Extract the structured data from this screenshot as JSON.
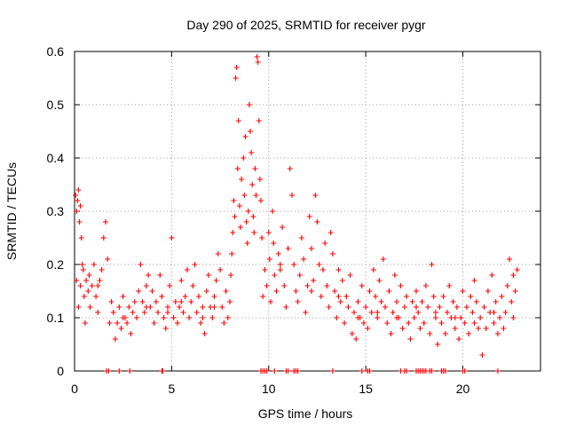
{
  "chart_data": {
    "type": "scatter",
    "title": "Day 290 of 2025, SRMTID for receiver pygr",
    "xlabel": "GPS time / hours",
    "ylabel": "SRMTID / TECUs",
    "xlim": [
      0,
      24
    ],
    "ylim": [
      0,
      0.6
    ],
    "xticks": [
      0,
      5,
      10,
      15,
      20
    ],
    "xtick_labels": [
      "0",
      "5",
      "10",
      "15",
      "20"
    ],
    "yticks": [
      0,
      0.1,
      0.2,
      0.3,
      0.4,
      0.5,
      0.6
    ],
    "ytick_labels": [
      "0",
      "0.1",
      "0.2",
      "0.3",
      "0.4",
      "0.5",
      "0.6"
    ],
    "grid": true,
    "marker": "+",
    "color": "#ff0000",
    "series": [
      {
        "name": "SRMTID",
        "points": [
          [
            0.05,
            0.33
          ],
          [
            0.1,
            0.3
          ],
          [
            0.15,
            0.32
          ],
          [
            0.2,
            0.34
          ],
          [
            0.25,
            0.28
          ],
          [
            0.3,
            0.31
          ],
          [
            0.35,
            0.25
          ],
          [
            0.4,
            0.2
          ],
          [
            0.1,
            0.17
          ],
          [
            0.2,
            0.12
          ],
          [
            0.3,
            0.16
          ],
          [
            0.45,
            0.19
          ],
          [
            0.5,
            0.14
          ],
          [
            0.55,
            0.09
          ],
          [
            0.6,
            0.17
          ],
          [
            0.7,
            0.15
          ],
          [
            0.75,
            0.18
          ],
          [
            0.8,
            0.12
          ],
          [
            0.9,
            0.16
          ],
          [
            1.0,
            0.2
          ],
          [
            1.1,
            0.14
          ],
          [
            1.2,
            0.11
          ],
          [
            1.3,
            0.17
          ],
          [
            1.4,
            0.19
          ],
          [
            1.5,
            0.25
          ],
          [
            1.6,
            0.28
          ],
          [
            1.7,
            0.21
          ],
          [
            1.8,
            0.09
          ],
          [
            1.9,
            0.13
          ],
          [
            2.0,
            0.11
          ],
          [
            2.1,
            0.06
          ],
          [
            2.2,
            0.09
          ],
          [
            2.3,
            0.12
          ],
          [
            2.4,
            0.08
          ],
          [
            2.5,
            0.14
          ],
          [
            2.6,
            0.1
          ],
          [
            2.7,
            0.09
          ],
          [
            2.8,
            0.12
          ],
          [
            2.9,
            0.07
          ],
          [
            3.0,
            0.11
          ],
          [
            3.1,
            0.13
          ],
          [
            3.2,
            0.1
          ],
          [
            3.3,
            0.15
          ],
          [
            3.4,
            0.2
          ],
          [
            3.5,
            0.13
          ],
          [
            3.6,
            0.11
          ],
          [
            3.7,
            0.16
          ],
          [
            3.8,
            0.18
          ],
          [
            3.9,
            0.12
          ],
          [
            4.0,
            0.15
          ],
          [
            4.1,
            0.09
          ],
          [
            4.2,
            0.13
          ],
          [
            4.3,
            0.11
          ],
          [
            4.4,
            0.18
          ],
          [
            4.5,
            0.14
          ],
          [
            4.6,
            0.1
          ],
          [
            4.7,
            0.08
          ],
          [
            4.8,
            0.12
          ],
          [
            4.9,
            0.16
          ],
          [
            5.0,
            0.25
          ],
          [
            5.1,
            0.1
          ],
          [
            5.2,
            0.13
          ],
          [
            5.3,
            0.09
          ],
          [
            5.4,
            0.12
          ],
          [
            5.5,
            0.17
          ],
          [
            5.6,
            0.11
          ],
          [
            5.7,
            0.14
          ],
          [
            5.8,
            0.19
          ],
          [
            5.9,
            0.1
          ],
          [
            6.0,
            0.13
          ],
          [
            6.1,
            0.16
          ],
          [
            6.2,
            0.2
          ],
          [
            6.3,
            0.11
          ],
          [
            6.4,
            0.14
          ],
          [
            6.5,
            0.09
          ],
          [
            6.6,
            0.12
          ],
          [
            6.7,
            0.07
          ],
          [
            6.8,
            0.15
          ],
          [
            6.9,
            0.18
          ],
          [
            7.0,
            0.12
          ],
          [
            7.1,
            0.1
          ],
          [
            7.2,
            0.14
          ],
          [
            7.3,
            0.17
          ],
          [
            7.4,
            0.22
          ],
          [
            7.5,
            0.19
          ],
          [
            7.6,
            0.12
          ],
          [
            7.7,
            0.09
          ],
          [
            7.8,
            0.15
          ],
          [
            7.9,
            0.1
          ],
          [
            8.0,
            0.13
          ],
          [
            8.05,
            0.18
          ],
          [
            8.1,
            0.22
          ],
          [
            8.15,
            0.26
          ],
          [
            8.2,
            0.32
          ],
          [
            8.25,
            0.29
          ],
          [
            8.3,
            0.55
          ],
          [
            8.35,
            0.57
          ],
          [
            8.4,
            0.38
          ],
          [
            8.45,
            0.47
          ],
          [
            8.5,
            0.31
          ],
          [
            8.55,
            0.27
          ],
          [
            8.6,
            0.36
          ],
          [
            8.7,
            0.4
          ],
          [
            8.75,
            0.33
          ],
          [
            8.8,
            0.44
          ],
          [
            8.85,
            0.28
          ],
          [
            8.9,
            0.24
          ],
          [
            8.95,
            0.3
          ],
          [
            9.0,
            0.5
          ],
          [
            9.05,
            0.45
          ],
          [
            9.1,
            0.41
          ],
          [
            9.15,
            0.35
          ],
          [
            9.2,
            0.29
          ],
          [
            9.25,
            0.26
          ],
          [
            9.3,
            0.38
          ],
          [
            9.35,
            0.33
          ],
          [
            9.4,
            0.59
          ],
          [
            9.45,
            0.58
          ],
          [
            9.5,
            0.47
          ],
          [
            9.55,
            0.36
          ],
          [
            9.6,
            0.32
          ],
          [
            9.65,
            0.25
          ],
          [
            9.7,
            0.14
          ],
          [
            9.8,
            0.19
          ],
          [
            9.9,
            0.16
          ],
          [
            10.0,
            0.26
          ],
          [
            10.05,
            0.21
          ],
          [
            10.1,
            0.13
          ],
          [
            10.2,
            0.3
          ],
          [
            10.25,
            0.24
          ],
          [
            10.3,
            0.18
          ],
          [
            10.4,
            0.15
          ],
          [
            10.5,
            0.22
          ],
          [
            10.6,
            0.19
          ],
          [
            10.7,
            0.27
          ],
          [
            10.8,
            0.16
          ],
          [
            10.9,
            0.12
          ],
          [
            11.0,
            0.23
          ],
          [
            11.1,
            0.38
          ],
          [
            11.2,
            0.33
          ],
          [
            11.3,
            0.2
          ],
          [
            11.4,
            0.15
          ],
          [
            11.5,
            0.13
          ],
          [
            11.6,
            0.18
          ],
          [
            11.7,
            0.25
          ],
          [
            11.8,
            0.21
          ],
          [
            11.9,
            0.11
          ],
          [
            12.0,
            0.16
          ],
          [
            12.1,
            0.29
          ],
          [
            12.2,
            0.23
          ],
          [
            12.3,
            0.17
          ],
          [
            12.4,
            0.33
          ],
          [
            12.5,
            0.28
          ],
          [
            12.6,
            0.2
          ],
          [
            12.7,
            0.14
          ],
          [
            12.8,
            0.19
          ],
          [
            12.9,
            0.24
          ],
          [
            13.0,
            0.16
          ],
          [
            13.1,
            0.12
          ],
          [
            13.2,
            0.26
          ],
          [
            13.3,
            0.22
          ],
          [
            13.4,
            0.15
          ],
          [
            13.5,
            0.1
          ],
          [
            13.6,
            0.19
          ],
          [
            13.7,
            0.13
          ],
          [
            13.8,
            0.17
          ],
          [
            13.9,
            0.09
          ],
          [
            14.0,
            0.14
          ],
          [
            14.1,
            0.12
          ],
          [
            14.2,
            0.18
          ],
          [
            14.3,
            0.07
          ],
          [
            14.4,
            0.11
          ],
          [
            14.5,
            0.06
          ],
          [
            14.6,
            0.13
          ],
          [
            14.7,
            0.1
          ],
          [
            14.8,
            0.16
          ],
          [
            14.9,
            0.09
          ],
          [
            15.0,
            0.12
          ],
          [
            15.1,
            0.08
          ],
          [
            15.2,
            0.15
          ],
          [
            15.3,
            0.11
          ],
          [
            15.4,
            0.19
          ],
          [
            15.5,
            0.14
          ],
          [
            15.6,
            0.1
          ],
          [
            15.7,
            0.17
          ],
          [
            15.8,
            0.13
          ],
          [
            15.9,
            0.21
          ],
          [
            16.0,
            0.12
          ],
          [
            16.1,
            0.09
          ],
          [
            16.2,
            0.15
          ],
          [
            16.3,
            0.07
          ],
          [
            16.4,
            0.11
          ],
          [
            16.5,
            0.18
          ],
          [
            16.6,
            0.13
          ],
          [
            16.7,
            0.1
          ],
          [
            16.8,
            0.16
          ],
          [
            16.9,
            0.08
          ],
          [
            17.0,
            0.12
          ],
          [
            17.1,
            0.14
          ],
          [
            17.2,
            0.09
          ],
          [
            17.3,
            0.06
          ],
          [
            17.4,
            0.13
          ],
          [
            17.5,
            0.1
          ],
          [
            17.6,
            0.15
          ],
          [
            17.7,
            0.11
          ],
          [
            17.8,
            0.08
          ],
          [
            17.9,
            0.13
          ],
          [
            18.0,
            0.09
          ],
          [
            18.1,
            0.16
          ],
          [
            18.2,
            0.12
          ],
          [
            18.3,
            0.07
          ],
          [
            18.4,
            0.2
          ],
          [
            18.5,
            0.14
          ],
          [
            18.6,
            0.1
          ],
          [
            18.7,
            0.05
          ],
          [
            18.8,
            0.12
          ],
          [
            18.9,
            0.09
          ],
          [
            19.0,
            0.14
          ],
          [
            19.1,
            0.07
          ],
          [
            19.2,
            0.11
          ],
          [
            19.3,
            0.16
          ],
          [
            19.4,
            0.1
          ],
          [
            19.5,
            0.13
          ],
          [
            19.6,
            0.08
          ],
          [
            19.7,
            0.12
          ],
          [
            19.8,
            0.06
          ],
          [
            19.9,
            0.1
          ],
          [
            20.0,
            0.15
          ],
          [
            20.1,
            0.09
          ],
          [
            20.2,
            0.12
          ],
          [
            20.3,
            0.07
          ],
          [
            20.4,
            0.14
          ],
          [
            20.5,
            0.11
          ],
          [
            20.6,
            0.17
          ],
          [
            20.7,
            0.13
          ],
          [
            20.8,
            0.08
          ],
          [
            20.9,
            0.1
          ],
          [
            21.0,
            0.03
          ],
          [
            21.1,
            0.12
          ],
          [
            21.2,
            0.08
          ],
          [
            21.3,
            0.15
          ],
          [
            21.4,
            0.11
          ],
          [
            21.5,
            0.18
          ],
          [
            21.6,
            0.09
          ],
          [
            21.7,
            0.13
          ],
          [
            21.8,
            0.07
          ],
          [
            21.9,
            0.1
          ],
          [
            22.0,
            0.14
          ],
          [
            22.1,
            0.08
          ],
          [
            22.2,
            0.11
          ],
          [
            22.3,
            0.16
          ],
          [
            22.4,
            0.21
          ],
          [
            22.5,
            0.13
          ],
          [
            22.6,
            0.18
          ],
          [
            22.7,
            0.15
          ],
          [
            22.8,
            0.19
          ],
          [
            1.2,
            0.16
          ],
          [
            2.5,
            0.1
          ],
          [
            3.7,
            0.12
          ],
          [
            4.8,
            0.11
          ],
          [
            5.5,
            0.13
          ],
          [
            6.6,
            0.1
          ],
          [
            7.2,
            0.12
          ],
          [
            10.6,
            0.2
          ],
          [
            12.2,
            0.15
          ],
          [
            13.6,
            0.14
          ],
          [
            14.6,
            0.1
          ],
          [
            15.6,
            0.11
          ],
          [
            16.6,
            0.1
          ],
          [
            17.6,
            0.12
          ],
          [
            18.6,
            0.11
          ],
          [
            19.6,
            0.1
          ],
          [
            20.6,
            0.09
          ],
          [
            21.6,
            0.11
          ],
          [
            22.6,
            0.1
          ],
          [
            1.65,
            0
          ],
          [
            1.75,
            0
          ],
          [
            2.3,
            0
          ],
          [
            2.85,
            0
          ],
          [
            4.5,
            0
          ],
          [
            4.55,
            0
          ],
          [
            9.6,
            0
          ],
          [
            9.7,
            0
          ],
          [
            9.8,
            0
          ],
          [
            9.9,
            0
          ],
          [
            10.3,
            0
          ],
          [
            10.9,
            0
          ],
          [
            11.0,
            0
          ],
          [
            11.3,
            0
          ],
          [
            11.4,
            0
          ],
          [
            11.5,
            0
          ],
          [
            13.3,
            0
          ],
          [
            14.8,
            0
          ],
          [
            15.1,
            0
          ],
          [
            15.2,
            0
          ],
          [
            16.8,
            0
          ],
          [
            17.0,
            0
          ],
          [
            17.1,
            0
          ],
          [
            17.6,
            0
          ],
          [
            17.7,
            0
          ],
          [
            17.8,
            0
          ],
          [
            17.9,
            0
          ],
          [
            18.0,
            0
          ],
          [
            18.1,
            0
          ],
          [
            18.3,
            0
          ],
          [
            18.4,
            0
          ],
          [
            18.9,
            0
          ],
          [
            19.0,
            0
          ],
          [
            19.1,
            0
          ],
          [
            20.0,
            0
          ],
          [
            20.1,
            0
          ],
          [
            21.8,
            0
          ]
        ]
      }
    ]
  }
}
